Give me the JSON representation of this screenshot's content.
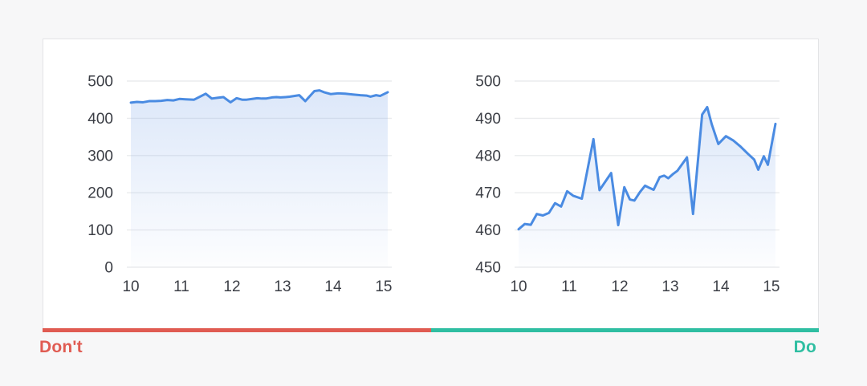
{
  "page": {
    "background_color": "#F7F7F8",
    "card_background": "#FFFFFF",
    "card_border_color": "#E3E4E6",
    "gridline_color": "#EAEBED",
    "axis_label_color": "#3B3E45"
  },
  "panels": {
    "dont": {
      "label": "Don't",
      "accent_color": "#E05B52"
    },
    "do": {
      "label": "Do",
      "accent_color": "#2FBEA2"
    }
  },
  "chart_data": [
    {
      "type": "area",
      "panel": "dont",
      "title": "",
      "xlabel": "",
      "ylabel": "",
      "line_color": "#4A8BE2",
      "fill_color": "#7AA4E8",
      "grid": "horizontal",
      "legend": "none",
      "xlim": [
        9.92,
        15.16
      ],
      "ylim": [
        0,
        500
      ],
      "xticks": [
        10,
        11,
        12,
        13,
        14,
        15
      ],
      "yticks": [
        0,
        100,
        200,
        300,
        400,
        500
      ],
      "xtick_labels": [
        "10",
        "11",
        "12",
        "13",
        "14",
        "15"
      ],
      "ytick_labels": [
        "0",
        "100",
        "200",
        "300",
        "400",
        "500"
      ],
      "x": [
        10.0,
        10.12,
        10.24,
        10.36,
        10.48,
        10.6,
        10.72,
        10.84,
        10.96,
        11.08,
        11.25,
        11.48,
        11.6,
        11.71,
        11.83,
        11.97,
        12.09,
        12.2,
        12.29,
        12.4,
        12.5,
        12.59,
        12.67,
        12.79,
        12.88,
        12.96,
        13.06,
        13.14,
        13.33,
        13.45,
        13.63,
        13.73,
        13.82,
        13.95,
        14.1,
        14.24,
        14.39,
        14.54,
        14.66,
        14.74,
        14.85,
        14.93,
        15.08
      ],
      "values": [
        442,
        444,
        443,
        446,
        446,
        447,
        449,
        448,
        452,
        451,
        450,
        466,
        453,
        455,
        457,
        443,
        454,
        450,
        450,
        452,
        454,
        453,
        453,
        456,
        457,
        456,
        457,
        458,
        462,
        446,
        473,
        475,
        470,
        465,
        467,
        466,
        464,
        462,
        461,
        458,
        462,
        460,
        470
      ]
    },
    {
      "type": "area",
      "panel": "do",
      "title": "",
      "xlabel": "",
      "ylabel": "",
      "line_color": "#4A8BE2",
      "fill_color": "#7AA4E8",
      "grid": "horizontal",
      "legend": "none",
      "xlim": [
        9.92,
        15.16
      ],
      "ylim": [
        450,
        500
      ],
      "xticks": [
        10,
        11,
        12,
        13,
        14,
        15
      ],
      "yticks": [
        450,
        460,
        470,
        480,
        490,
        500
      ],
      "xtick_labels": [
        "10",
        "11",
        "12",
        "13",
        "14",
        "15"
      ],
      "ytick_labels": [
        "450",
        "460",
        "470",
        "480",
        "490",
        "500"
      ],
      "x": [
        10.0,
        10.12,
        10.24,
        10.36,
        10.48,
        10.6,
        10.72,
        10.84,
        10.96,
        11.08,
        11.25,
        11.48,
        11.6,
        11.71,
        11.83,
        11.97,
        12.09,
        12.2,
        12.29,
        12.4,
        12.5,
        12.59,
        12.67,
        12.79,
        12.88,
        12.96,
        13.06,
        13.14,
        13.33,
        13.45,
        13.63,
        13.73,
        13.82,
        13.95,
        14.1,
        14.24,
        14.39,
        14.54,
        14.66,
        14.74,
        14.85,
        14.93,
        15.08
      ],
      "values": [
        460.2,
        461.6,
        461.4,
        464.3,
        463.9,
        464.6,
        467.2,
        466.3,
        470.4,
        469.2,
        468.4,
        484.4,
        470.7,
        472.9,
        475.3,
        461.3,
        471.5,
        468.2,
        467.9,
        470.2,
        471.9,
        471.3,
        470.8,
        474.2,
        474.6,
        473.9,
        475.1,
        475.9,
        479.5,
        464.3,
        491.0,
        493.0,
        488.4,
        483.1,
        485.2,
        484.1,
        482.4,
        480.4,
        478.9,
        476.2,
        479.8,
        477.5,
        488.5
      ]
    }
  ]
}
